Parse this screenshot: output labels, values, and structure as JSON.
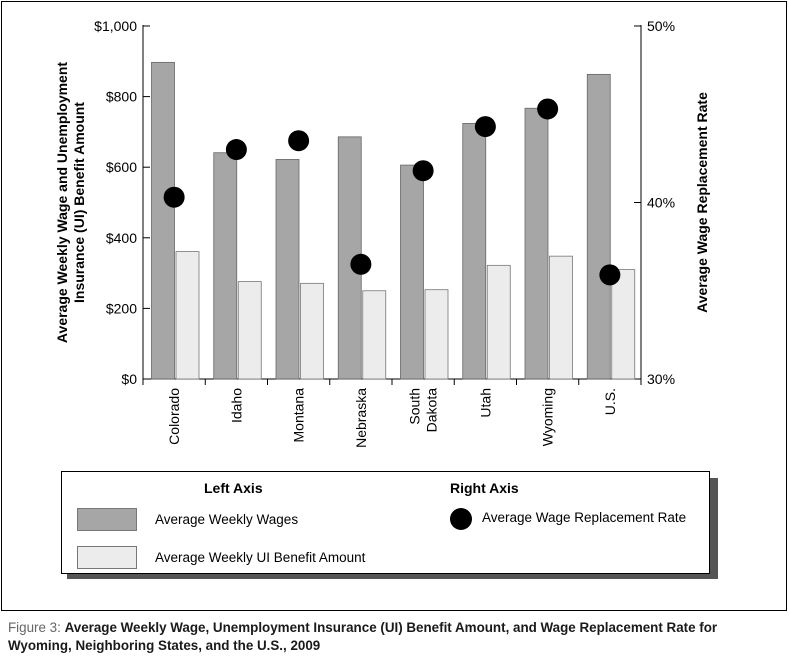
{
  "chart_data": {
    "type": "bar",
    "categories": [
      "Colorado",
      "Idaho",
      "Montana",
      "Nebraska",
      "South Dakota",
      "Utah",
      "Wyoming",
      "U.S."
    ],
    "category_lines": [
      [
        "Colorado"
      ],
      [
        "Idaho"
      ],
      [
        "Montana"
      ],
      [
        "Nebraska"
      ],
      [
        "South",
        "Dakota"
      ],
      [
        "Utah"
      ],
      [
        "Wyoming"
      ],
      [
        "U.S."
      ]
    ],
    "series": [
      {
        "name": "Average Weekly Wages",
        "axis": "left",
        "type": "bar",
        "color": "#a6a6a6",
        "values": [
          897,
          641,
          622,
          686,
          606,
          724,
          767,
          863
        ]
      },
      {
        "name": "Average Weekly UI Benefit Amount",
        "axis": "left",
        "type": "bar",
        "color": "#ececec",
        "values": [
          361,
          276,
          271,
          250,
          253,
          322,
          348,
          310
        ]
      },
      {
        "name": "Average Wage Replacement Rate",
        "axis": "right",
        "type": "scatter",
        "color": "#000000",
        "values": [
          40.3,
          43.0,
          43.5,
          36.5,
          41.8,
          44.3,
          45.3,
          35.9
        ]
      }
    ],
    "ylabel": "Average Weekly Wage and Unemployment Insurance (UI) Benefit Amount",
    "y2label": "Average Wage Replacement Rate",
    "ylim": [
      0,
      1000
    ],
    "y2lim": [
      30,
      50
    ],
    "yticks": [
      "$0",
      "$200",
      "$400",
      "$600",
      "$800",
      "$1,000"
    ],
    "y2ticks": [
      "30%",
      "40%",
      "50%"
    ],
    "grid": false,
    "legend_position": "bottom"
  },
  "legend": {
    "left_heading": "Left Axis",
    "right_heading": "Right Axis",
    "wages_label": "Average Weekly Wages",
    "benefit_label": "Average Weekly UI Benefit Amount",
    "rate_label": "Average Wage Replacement Rate"
  },
  "caption": {
    "lead": "Figure 3:",
    "text": "Average Weekly Wage, Unemployment Insurance (UI) Benefit Amount, and Wage Replacement Rate for Wyoming, Neighboring States, and the U.S., 2009"
  },
  "colors": {
    "wages": "#a6a6a6",
    "benefit": "#ececec",
    "rate": "#000000"
  }
}
